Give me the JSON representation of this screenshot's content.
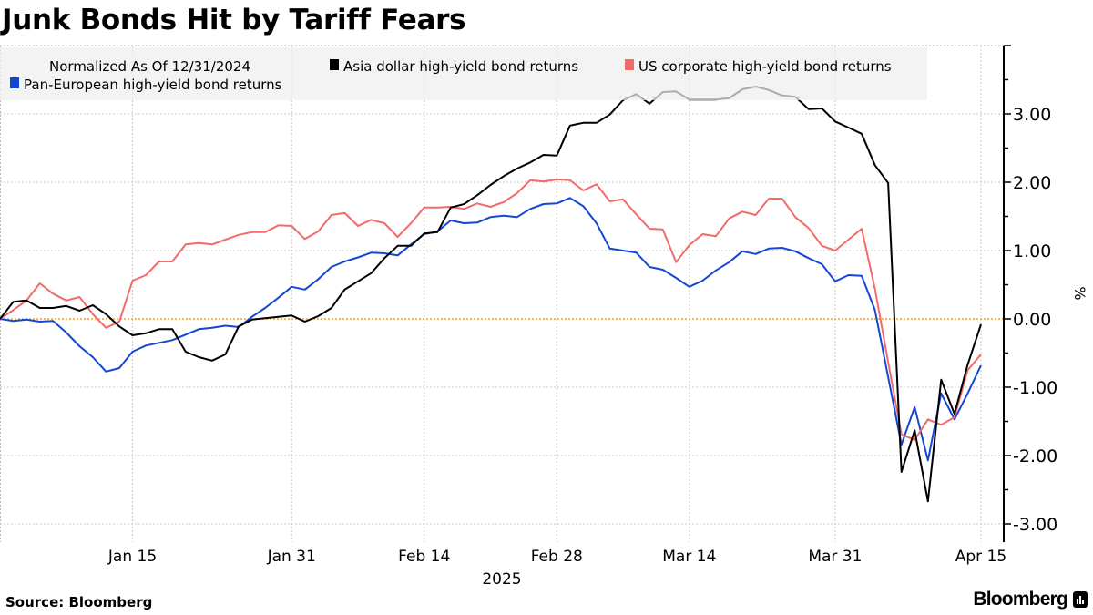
{
  "title": "Junk Bonds Hit by Tariff Fears",
  "footer": {
    "source": "Source: Bloomberg",
    "logo": "Bloomberg"
  },
  "chart_data": {
    "type": "line",
    "title": "Junk Bonds Hit by Tariff Fears",
    "legend_note": "Normalized As Of 12/31/2024",
    "legend_position": "top",
    "ylabel": "%",
    "xlabel": "2025",
    "ylim": [
      -3.27,
      4.0
    ],
    "y_ticks": [
      3,
      2,
      1,
      0,
      -1,
      -2,
      -3
    ],
    "y_tick_labels": [
      "3.00",
      "2.00",
      "1.00",
      "0.00",
      "-1.00",
      "-2.00",
      "-3.00"
    ],
    "y_axis_side": "right",
    "grid": true,
    "reference_line": {
      "value": 0,
      "color": "#f0a020"
    },
    "x_ticks": [
      {
        "date": "2025-01-15",
        "label": "Jan 15"
      },
      {
        "date": "2025-01-31",
        "label": "Jan 31"
      },
      {
        "date": "2025-02-14",
        "label": "Feb 14"
      },
      {
        "date": "2025-02-28",
        "label": "Feb 28"
      },
      {
        "date": "2025-03-14",
        "label": "Mar 14"
      },
      {
        "date": "2025-03-31",
        "label": "Mar 31"
      },
      {
        "date": "2025-04-15",
        "label": "Apr 15"
      }
    ],
    "x": [
      "2024-12-31",
      "2025-01-02",
      "2025-01-03",
      "2025-01-06",
      "2025-01-07",
      "2025-01-08",
      "2025-01-09",
      "2025-01-10",
      "2025-01-13",
      "2025-01-14",
      "2025-01-15",
      "2025-01-16",
      "2025-01-17",
      "2025-01-20",
      "2025-01-21",
      "2025-01-22",
      "2025-01-23",
      "2025-01-24",
      "2025-01-27",
      "2025-01-28",
      "2025-01-29",
      "2025-01-30",
      "2025-01-31",
      "2025-02-03",
      "2025-02-04",
      "2025-02-05",
      "2025-02-06",
      "2025-02-07",
      "2025-02-10",
      "2025-02-11",
      "2025-02-12",
      "2025-02-13",
      "2025-02-14",
      "2025-02-17",
      "2025-02-18",
      "2025-02-19",
      "2025-02-20",
      "2025-02-21",
      "2025-02-24",
      "2025-02-25",
      "2025-02-26",
      "2025-02-27",
      "2025-02-28",
      "2025-03-03",
      "2025-03-04",
      "2025-03-05",
      "2025-03-06",
      "2025-03-07",
      "2025-03-10",
      "2025-03-11",
      "2025-03-12",
      "2025-03-13",
      "2025-03-14",
      "2025-03-17",
      "2025-03-18",
      "2025-03-19",
      "2025-03-20",
      "2025-03-21",
      "2025-03-24",
      "2025-03-25",
      "2025-03-26",
      "2025-03-27",
      "2025-03-28",
      "2025-03-31",
      "2025-04-01",
      "2025-04-02",
      "2025-04-03",
      "2025-04-04",
      "2025-04-07",
      "2025-04-08",
      "2025-04-09",
      "2025-04-10",
      "2025-04-11",
      "2025-04-14",
      "2025-04-15"
    ],
    "series": [
      {
        "name": "Asia dollar high-yield bond returns",
        "color": "#000000",
        "values": [
          0,
          0.25,
          0.27,
          0.16,
          0.16,
          0.19,
          0.12,
          0.2,
          0.07,
          -0.11,
          -0.24,
          -0.21,
          -0.15,
          -0.15,
          -0.48,
          -0.56,
          -0.61,
          -0.52,
          -0.11,
          -0.01,
          0.01,
          0.03,
          0.05,
          -0.04,
          0.04,
          0.16,
          0.43,
          0.55,
          0.67,
          0.89,
          1.07,
          1.07,
          1.25,
          1.27,
          1.63,
          1.68,
          1.81,
          1.96,
          2.09,
          2.2,
          2.29,
          2.4,
          2.39,
          2.83,
          2.87,
          2.87,
          2.99,
          3.2,
          3.29,
          3.15,
          3.32,
          3.33,
          3.21,
          3.21,
          3.21,
          3.23,
          3.36,
          3.4,
          3.35,
          3.27,
          3.25,
          3.07,
          3.08,
          2.89,
          2.8,
          2.71,
          2.25,
          1.99,
          -2.24,
          -1.63,
          -2.67,
          -0.89,
          -1.39,
          -0.67,
          -0.08
        ]
      },
      {
        "name": "US corporate high-yield bond returns",
        "color": "#f26b6b",
        "values": [
          0,
          0.13,
          0.27,
          0.52,
          0.37,
          0.27,
          0.32,
          0.07,
          -0.13,
          -0.04,
          0.56,
          0.64,
          0.84,
          0.84,
          1.09,
          1.11,
          1.09,
          1.16,
          1.23,
          1.27,
          1.27,
          1.37,
          1.36,
          1.17,
          1.28,
          1.52,
          1.55,
          1.36,
          1.45,
          1.4,
          1.2,
          1.4,
          1.63,
          1.63,
          1.64,
          1.61,
          1.69,
          1.64,
          1.71,
          1.84,
          2.03,
          2.01,
          2.04,
          2.03,
          1.88,
          1.97,
          1.72,
          1.75,
          1.53,
          1.32,
          1.31,
          0.83,
          1.08,
          1.24,
          1.21,
          1.47,
          1.57,
          1.52,
          1.76,
          1.76,
          1.49,
          1.33,
          1.07,
          1.0,
          1.16,
          1.32,
          0.44,
          -0.63,
          -1.69,
          -1.77,
          -1.47,
          -1.55,
          -1.44,
          -0.75,
          -0.52
        ]
      },
      {
        "name": "Pan-European high-yield bond returns",
        "color": "#1446d4",
        "values": [
          0,
          -0.03,
          -0.01,
          -0.04,
          -0.03,
          -0.2,
          -0.4,
          -0.56,
          -0.77,
          -0.72,
          -0.48,
          -0.39,
          -0.35,
          -0.31,
          -0.23,
          -0.15,
          -0.13,
          -0.1,
          -0.12,
          0.03,
          0.16,
          0.31,
          0.47,
          0.43,
          0.58,
          0.76,
          0.84,
          0.9,
          0.97,
          0.96,
          0.93,
          1.09,
          1.24,
          1.28,
          1.44,
          1.4,
          1.41,
          1.49,
          1.51,
          1.49,
          1.61,
          1.68,
          1.69,
          1.77,
          1.65,
          1.4,
          1.03,
          1.0,
          0.97,
          0.76,
          0.72,
          0.6,
          0.47,
          0.56,
          0.71,
          0.83,
          0.99,
          0.95,
          1.03,
          1.04,
          0.99,
          0.89,
          0.8,
          0.55,
          0.64,
          0.63,
          0.13,
          -0.85,
          -1.84,
          -1.29,
          -2.07,
          -1.09,
          -1.47,
          -1.09,
          -0.68
        ]
      }
    ]
  }
}
